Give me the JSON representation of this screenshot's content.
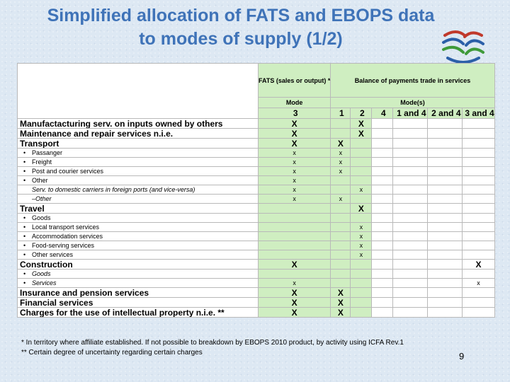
{
  "title": {
    "line1": "Simplified allocation of FATS and EBOPS data",
    "line2": "to modes of supply (1/2)"
  },
  "logo": {
    "icon": "wto-logo-icon",
    "colors": [
      "#c0392b",
      "#2b5fa8",
      "#3f9a3a",
      "#2b5fa8"
    ]
  },
  "colors": {
    "title": "#3f73b8",
    "green": "#cfeec1",
    "grid": "#b9b9b9"
  },
  "header": {
    "fats": "FATS (sales or output) *",
    "bop": "Balance of payments trade in services",
    "mode": "Mode",
    "modes": "Mode(s)"
  },
  "mode_numbers": [
    "3",
    "1",
    "2",
    "4",
    "1 and 4",
    "2 and 4",
    "3 and 4"
  ],
  "rows": [
    {
      "label": "Manufactacturing serv. on inputs owned by others",
      "style": "bold",
      "bullet": "",
      "marks": [
        "X",
        "",
        "X",
        "",
        "",
        "",
        ""
      ]
    },
    {
      "label": "Maintenance and repair services n.i.e.",
      "style": "bold",
      "bullet": "",
      "marks": [
        "X",
        "",
        "X",
        "",
        "",
        "",
        ""
      ]
    },
    {
      "label": "Transport",
      "style": "bold",
      "bullet": "",
      "marks": [
        "X",
        "X",
        "",
        "",
        "",
        "",
        ""
      ]
    },
    {
      "label": "Passanger",
      "style": "sub",
      "bullet": "•",
      "marks": [
        "x",
        "x",
        "",
        "",
        "",
        "",
        ""
      ]
    },
    {
      "label": "Freight",
      "style": "sub",
      "bullet": "•",
      "marks": [
        "x",
        "x",
        "",
        "",
        "",
        "",
        ""
      ]
    },
    {
      "label": "Post and courier services",
      "style": "sub",
      "bullet": "•",
      "marks": [
        "x",
        "x",
        "",
        "",
        "",
        "",
        ""
      ]
    },
    {
      "label": "Other",
      "style": "sub",
      "bullet": "•",
      "marks": [
        "x",
        "",
        "",
        "",
        "",
        "",
        ""
      ]
    },
    {
      "label": "Serv. to domestic carriers in foreign ports (and vice-versa)",
      "style": "sub-it-ind",
      "bullet": "",
      "marks": [
        "x",
        "",
        "x",
        "",
        "",
        "",
        ""
      ]
    },
    {
      "label": "–Other",
      "style": "sub-it-ind",
      "bullet": "",
      "marks": [
        "x",
        "x",
        "",
        "",
        "",
        "",
        ""
      ]
    },
    {
      "label": "Travel",
      "style": "bold",
      "bullet": "",
      "marks": [
        "",
        "",
        "X",
        "",
        "",
        "",
        ""
      ]
    },
    {
      "label": "Goods",
      "style": "sub",
      "bullet": "•",
      "marks": [
        "",
        "",
        "",
        "",
        "",
        "",
        ""
      ]
    },
    {
      "label": "Local transport services",
      "style": "sub",
      "bullet": "•",
      "marks": [
        "",
        "",
        "x",
        "",
        "",
        "",
        ""
      ]
    },
    {
      "label": "Accommodation services",
      "style": "sub",
      "bullet": "•",
      "marks": [
        "",
        "",
        "x",
        "",
        "",
        "",
        ""
      ]
    },
    {
      "label": "Food-serving services",
      "style": "sub",
      "bullet": "•",
      "marks": [
        "",
        "",
        "x",
        "",
        "",
        "",
        ""
      ]
    },
    {
      "label": "Other services",
      "style": "sub",
      "bullet": "•",
      "marks": [
        "",
        "",
        "x",
        "",
        "",
        "",
        ""
      ]
    },
    {
      "label": "Construction",
      "style": "bold",
      "bullet": "",
      "marks": [
        "X",
        "",
        "",
        "",
        "",
        "",
        "X"
      ]
    },
    {
      "label": "Goods",
      "style": "sub-it",
      "bullet": "•",
      "marks": [
        "",
        "",
        "",
        "",
        "",
        "",
        ""
      ]
    },
    {
      "label": "Services",
      "style": "sub-it",
      "bullet": "•",
      "marks": [
        "x",
        "",
        "",
        "",
        "",
        "",
        "x"
      ]
    },
    {
      "label": "Insurance and pension services",
      "style": "bold",
      "bullet": "",
      "marks": [
        "X",
        "X",
        "",
        "",
        "",
        "",
        ""
      ]
    },
    {
      "label": "Financial services",
      "style": "bold",
      "bullet": "",
      "marks": [
        "X",
        "X",
        "",
        "",
        "",
        "",
        ""
      ]
    },
    {
      "label": "Charges for the use of intellectual property n.i.e. **",
      "style": "bold",
      "bullet": "",
      "marks": [
        "X",
        "X",
        "",
        "",
        "",
        "",
        ""
      ]
    }
  ],
  "footnotes": [
    "*  In territory where affiliate established. If not possible to breakdown by EBOPS 2010 product, by activity using ICFA Rev.1",
    "** Certain degree of uncertainty regarding certain charges"
  ],
  "page_number": "9"
}
